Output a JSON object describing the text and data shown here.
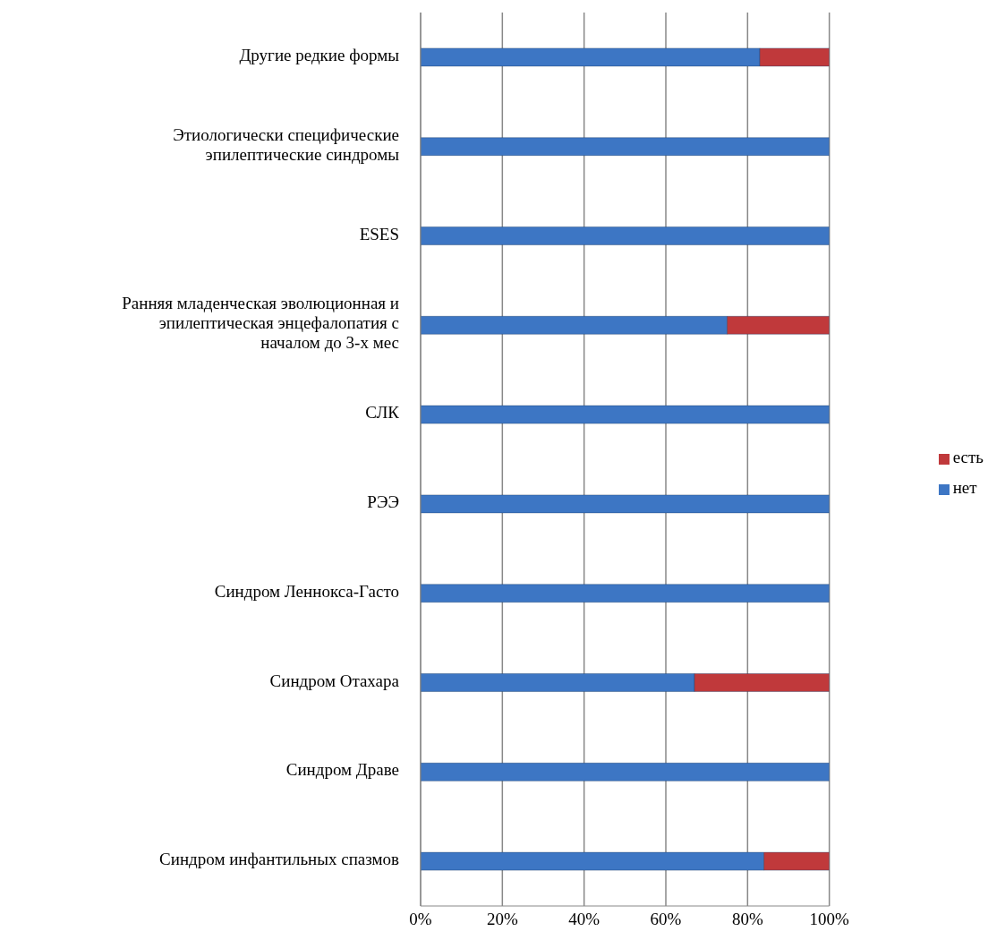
{
  "chart_data": {
    "type": "bar",
    "orientation": "horizontal",
    "stacked": true,
    "categories": [
      "Другие редкие формы",
      "Этиологически специфические эпилептические синдромы",
      "ESES",
      "Ранняя младенческая эволюционная и эпилептическая энцефалопатия с началом до 3-х мес",
      "СЛК",
      "РЭЭ",
      "Синдром Леннокса-Гасто",
      "Синдром Отахара",
      "Синдром Драве",
      "Синдром инфантильных спазмов"
    ],
    "series": [
      {
        "name": "нет",
        "color": "#3d76c4",
        "values": [
          83,
          100,
          100,
          75,
          100,
          100,
          100,
          67,
          100,
          84
        ]
      },
      {
        "name": "есть",
        "color": "#c0393b",
        "values": [
          17,
          0,
          0,
          25,
          0,
          0,
          0,
          33,
          0,
          16
        ]
      }
    ],
    "xlim": [
      0,
      100
    ],
    "xticks": [
      {
        "value": 0,
        "label": "0%"
      },
      {
        "value": 20,
        "label": "20%"
      },
      {
        "value": 40,
        "label": "40%"
      },
      {
        "value": 60,
        "label": "60%"
      },
      {
        "value": 80,
        "label": "80%"
      },
      {
        "value": 100,
        "label": "100%"
      }
    ],
    "grid": "x",
    "legend": "right"
  }
}
